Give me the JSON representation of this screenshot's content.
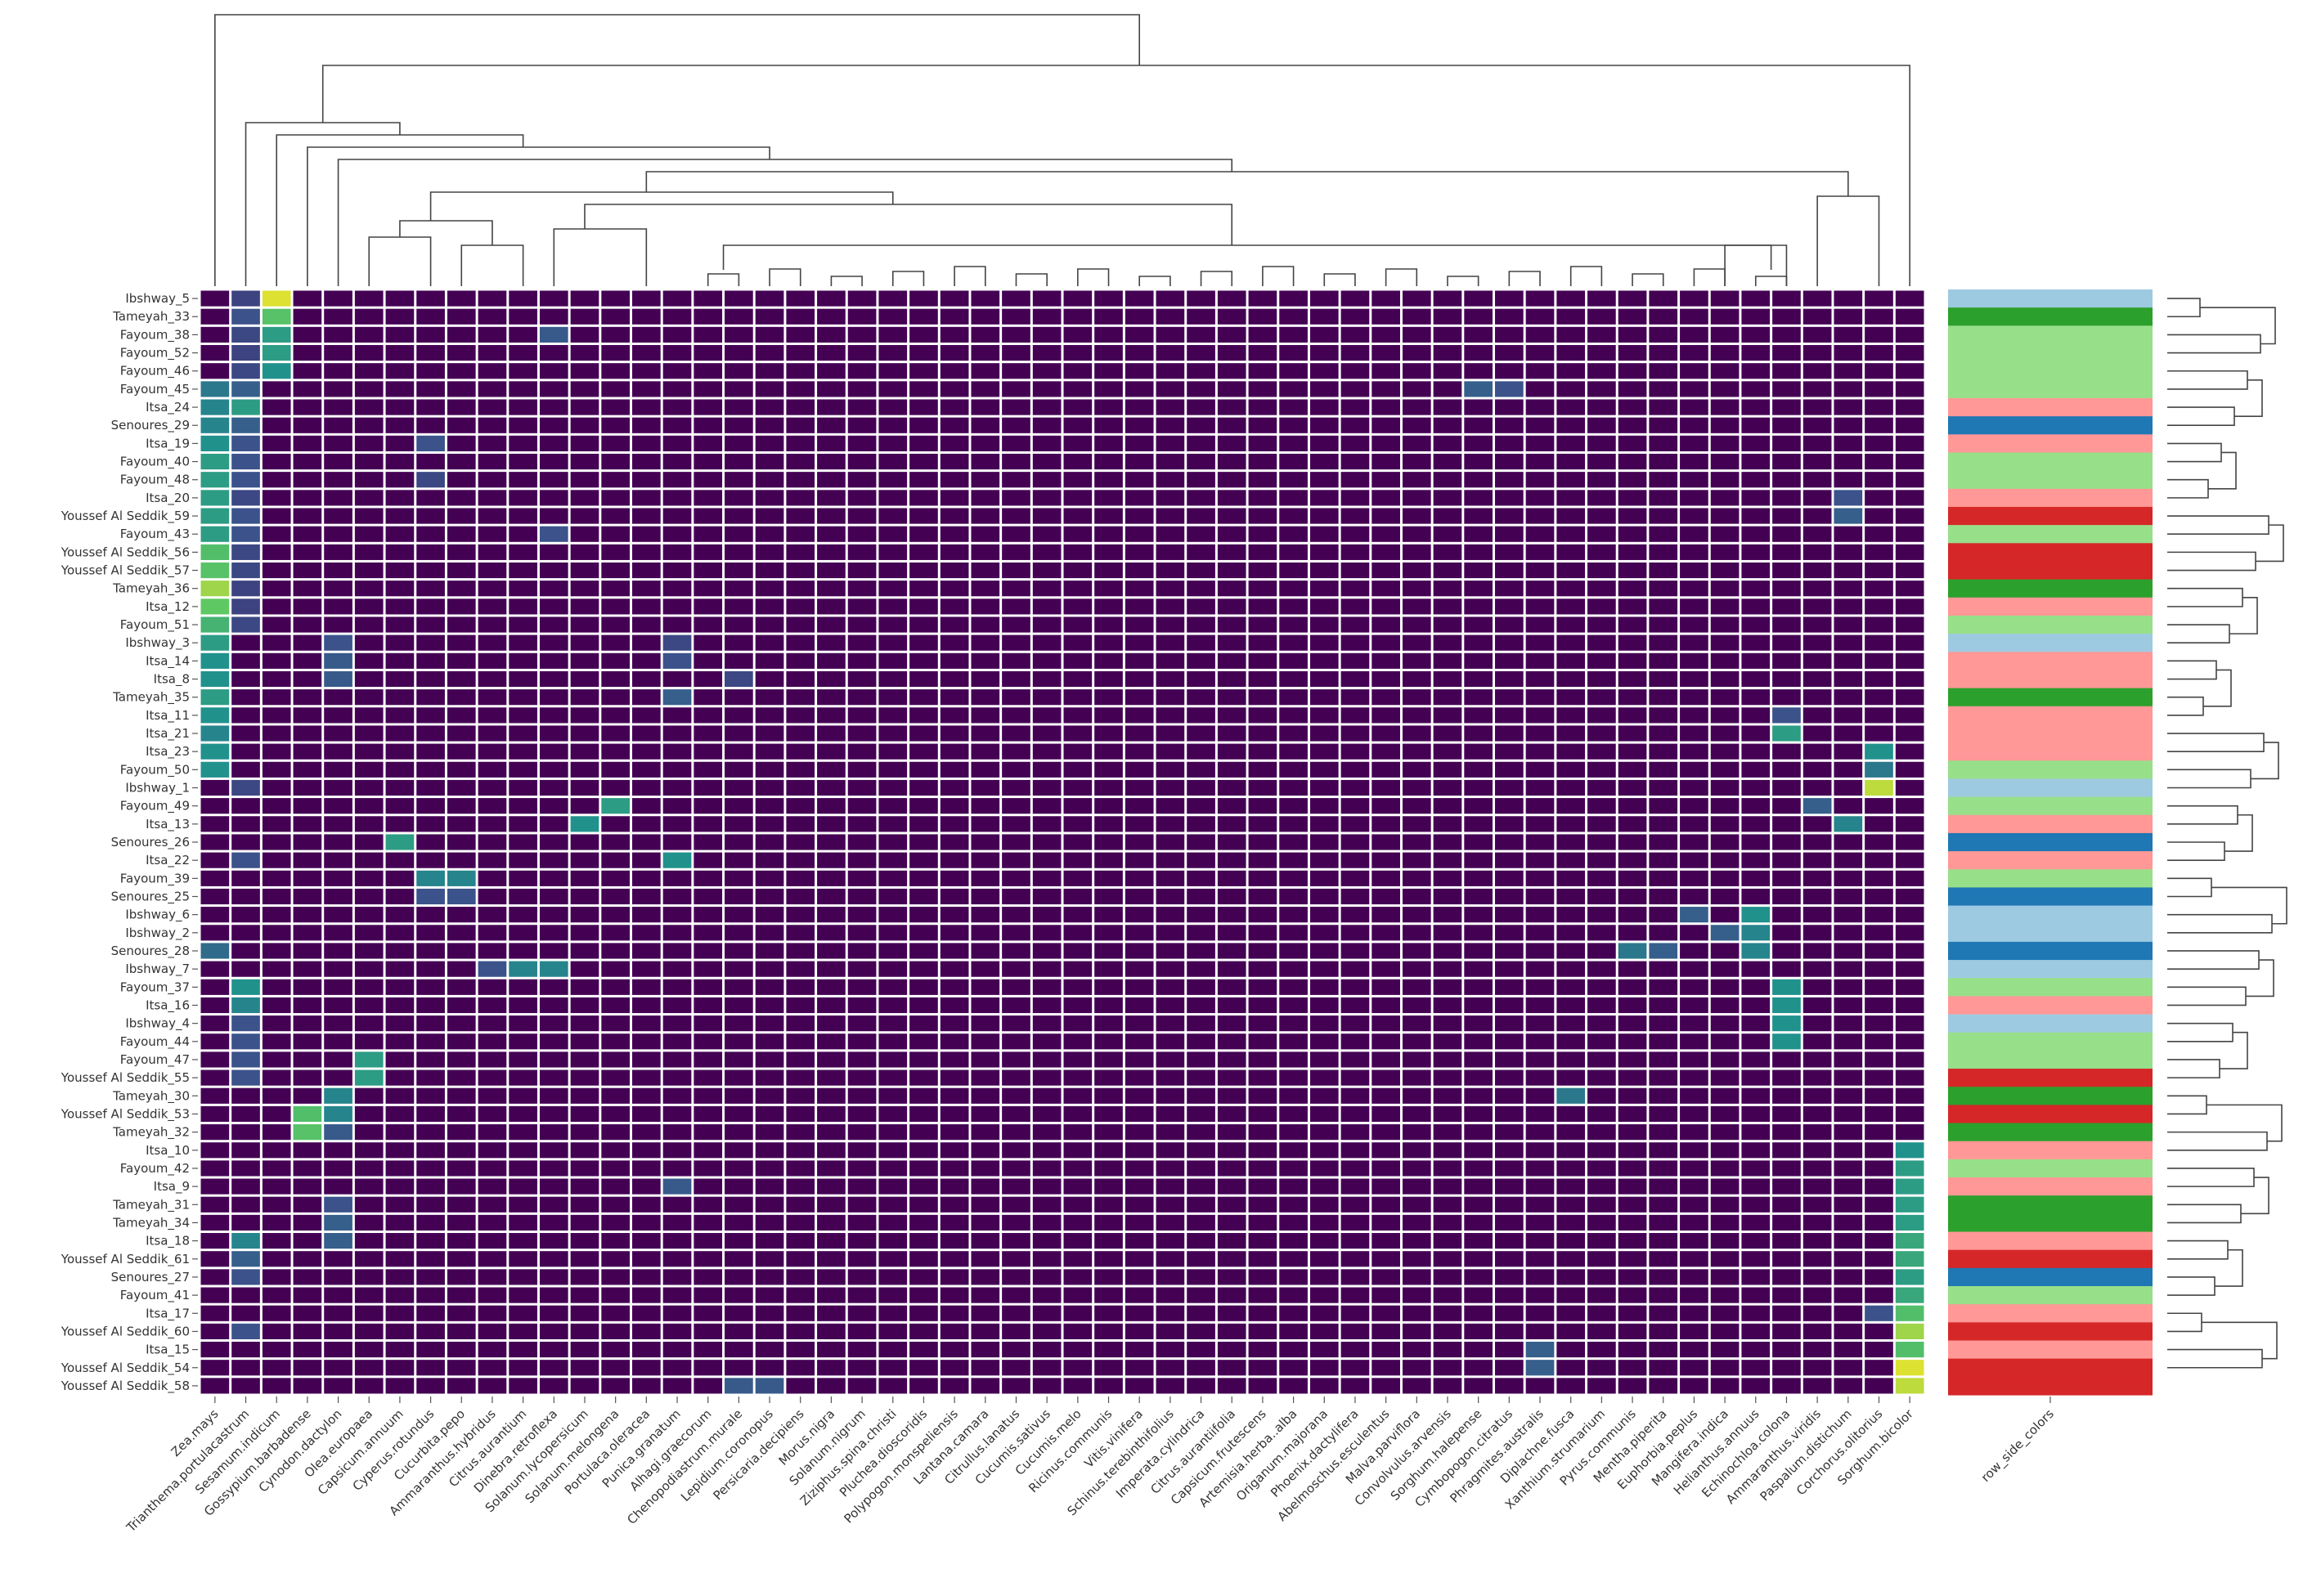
{
  "chart_data": {
    "type": "heatmap",
    "title": "",
    "xlabel": "",
    "ylabel": "",
    "colormap": "viridis",
    "value_range": [
      0,
      1
    ],
    "columns": [
      "Zea.mays",
      "Trianthema.portulacastrum",
      "Sesamum.indicum",
      "Gossypium.barbadense",
      "Cynodon.dactylon",
      "Olea.europaea",
      "Capsicum.annuum",
      "Cyperus.rotundus",
      "Cucurbita.pepo",
      "Ammaranthus.hybridus",
      "Citrus.aurantium",
      "Dinebra.retroflexa",
      "Solanum.lycopersicum",
      "Solanum.melongena",
      "Portulaca.oleracea",
      "Punica.granatum",
      "Alhagi.graecorum",
      "Chenopodiastrum.murale",
      "Lepidium.coronopus",
      "Persicaria.decipiens",
      "Morus.nigra",
      "Solanum.nigrum",
      "Ziziphus.spina.christi",
      "Pluchea.dioscoridis",
      "Polypogon.monspeliensis",
      "Lantana.camara",
      "Citrullus.lanatus",
      "Cucumis.sativus",
      "Cucumis.melo",
      "Ricinus.communis",
      "Vitis.vinifera",
      "Schinus.terebinthifolius",
      "Imperata.cylindrica",
      "Citrus.aurantiifolia",
      "Capsicum.frutescens",
      "Artemisia.herba..alba",
      "Origanum.majorana",
      "Phoenix.dactylifera",
      "Abelmoschus.esculentus",
      "Malva.parviflora",
      "Convolvulus.arvensis",
      "Sorghum.halepense",
      "Cymbopogon.citratus",
      "Phragmites.australis",
      "Diplachne.fusca",
      "Xanthium.strumarium",
      "Pyrus.communis",
      "Mentha.piperita",
      "Euphorbia.peplus",
      "Mangifera.indica",
      "Helianthus.annuus",
      "Echinochloa.colona",
      "Ammaranthus.viridis",
      "Paspalum.distichum",
      "Corchorus.olitorius",
      "Sorghum.bicolor"
    ],
    "rows": [
      "Ibshway_5",
      "Tameyah_33",
      "Fayoum_38",
      "Fayoum_52",
      "Fayoum_46",
      "Fayoum_45",
      "Itsa_24",
      "Senoures_29",
      "Itsa_19",
      "Fayoum_40",
      "Fayoum_48",
      "Itsa_20",
      "Youssef Al Seddik_59",
      "Fayoum_43",
      "Youssef Al Seddik_56",
      "Youssef Al Seddik_57",
      "Tameyah_36",
      "Itsa_12",
      "Fayoum_51",
      "Ibshway_3",
      "Itsa_14",
      "Itsa_8",
      "Tameyah_35",
      "Itsa_11",
      "Itsa_21",
      "Itsa_23",
      "Fayoum_50",
      "Ibshway_1",
      "Fayoum_49",
      "Itsa_13",
      "Senoures_26",
      "Itsa_22",
      "Fayoum_39",
      "Senoures_25",
      "Ibshway_6",
      "Ibshway_2",
      "Senoures_28",
      "Ibshway_7",
      "Fayoum_37",
      "Itsa_16",
      "Ibshway_4",
      "Fayoum_44",
      "Fayoum_47",
      "Youssef Al Seddik_55",
      "Tameyah_30",
      "Youssef Al Seddik_53",
      "Tameyah_32",
      "Itsa_10",
      "Fayoum_42",
      "Itsa_9",
      "Tameyah_31",
      "Tameyah_34",
      "Itsa_18",
      "Youssef Al Seddik_61",
      "Senoures_27",
      "Fayoum_41",
      "Itsa_17",
      "Youssef Al Seddik_60",
      "Itsa_15",
      "Youssef Al Seddik_54",
      "Youssef Al Seddik_58"
    ],
    "side_colors_label": "row_side_colors",
    "row_side_colors": [
      "#9ecae1",
      "#2ca02c",
      "#98df8a",
      "#98df8a",
      "#98df8a",
      "#98df8a",
      "#ff9896",
      "#1f77b4",
      "#ff9896",
      "#98df8a",
      "#98df8a",
      "#ff9896",
      "#d62728",
      "#98df8a",
      "#d62728",
      "#d62728",
      "#2ca02c",
      "#ff9896",
      "#98df8a",
      "#9ecae1",
      "#ff9896",
      "#ff9896",
      "#2ca02c",
      "#ff9896",
      "#ff9896",
      "#ff9896",
      "#98df8a",
      "#9ecae1",
      "#98df8a",
      "#ff9896",
      "#1f77b4",
      "#ff9896",
      "#98df8a",
      "#1f77b4",
      "#9ecae1",
      "#9ecae1",
      "#1f77b4",
      "#9ecae1",
      "#98df8a",
      "#ff9896",
      "#9ecae1",
      "#98df8a",
      "#98df8a",
      "#d62728",
      "#2ca02c",
      "#d62728",
      "#2ca02c",
      "#ff9896",
      "#98df8a",
      "#ff9896",
      "#2ca02c",
      "#2ca02c",
      "#ff9896",
      "#d62728",
      "#1f77b4",
      "#98df8a",
      "#ff9896",
      "#d62728",
      "#ff9896",
      "#d62728",
      "#d62728"
    ],
    "cells": [
      {
        "row": "Ibshway_5",
        "col": "Sesamum.indicum",
        "v": 0.95
      },
      {
        "row": "Ibshway_5",
        "col": "Trianthema.portulacastrum",
        "v": 0.2
      },
      {
        "row": "Tameyah_33",
        "col": "Sesamum.indicum",
        "v": 0.72
      },
      {
        "row": "Tameyah_33",
        "col": "Trianthema.portulacastrum",
        "v": 0.25
      },
      {
        "row": "Fayoum_38",
        "col": "Sesamum.indicum",
        "v": 0.55
      },
      {
        "row": "Fayoum_38",
        "col": "Trianthema.portulacastrum",
        "v": 0.22
      },
      {
        "row": "Fayoum_38",
        "col": "Dinebra.retroflexa",
        "v": 0.28
      },
      {
        "row": "Fayoum_52",
        "col": "Sesamum.indicum",
        "v": 0.55
      },
      {
        "row": "Fayoum_52",
        "col": "Trianthema.portulacastrum",
        "v": 0.2
      },
      {
        "row": "Fayoum_46",
        "col": "Sesamum.indicum",
        "v": 0.5
      },
      {
        "row": "Fayoum_46",
        "col": "Trianthema.portulacastrum",
        "v": 0.22
      },
      {
        "row": "Fayoum_45",
        "col": "Zea.mays",
        "v": 0.4
      },
      {
        "row": "Fayoum_45",
        "col": "Trianthema.portulacastrum",
        "v": 0.3
      },
      {
        "row": "Fayoum_45",
        "col": "Sorghum.halepense",
        "v": 0.3
      },
      {
        "row": "Fayoum_45",
        "col": "Cymbopogon.citratus",
        "v": 0.25
      },
      {
        "row": "Itsa_24",
        "col": "Zea.mays",
        "v": 0.45
      },
      {
        "row": "Itsa_24",
        "col": "Trianthema.portulacastrum",
        "v": 0.55
      },
      {
        "row": "Senoures_29",
        "col": "Zea.mays",
        "v": 0.45
      },
      {
        "row": "Senoures_29",
        "col": "Trianthema.portulacastrum",
        "v": 0.3
      },
      {
        "row": "Itsa_19",
        "col": "Zea.mays",
        "v": 0.5
      },
      {
        "row": "Itsa_19",
        "col": "Trianthema.portulacastrum",
        "v": 0.25
      },
      {
        "row": "Itsa_19",
        "col": "Cyperus.rotundus",
        "v": 0.25
      },
      {
        "row": "Fayoum_40",
        "col": "Zea.mays",
        "v": 0.55
      },
      {
        "row": "Fayoum_40",
        "col": "Trianthema.portulacastrum",
        "v": 0.25
      },
      {
        "row": "Fayoum_48",
        "col": "Zea.mays",
        "v": 0.55
      },
      {
        "row": "Fayoum_48",
        "col": "Trianthema.portulacastrum",
        "v": 0.25
      },
      {
        "row": "Fayoum_48",
        "col": "Cyperus.rotundus",
        "v": 0.22
      },
      {
        "row": "Itsa_20",
        "col": "Zea.mays",
        "v": 0.55
      },
      {
        "row": "Itsa_20",
        "col": "Trianthema.portulacastrum",
        "v": 0.22
      },
      {
        "row": "Itsa_20",
        "col": "Paspalum.distichum",
        "v": 0.25
      },
      {
        "row": "Youssef Al Seddik_59",
        "col": "Zea.mays",
        "v": 0.55
      },
      {
        "row": "Youssef Al Seddik_59",
        "col": "Trianthema.portulacastrum",
        "v": 0.25
      },
      {
        "row": "Youssef Al Seddik_59",
        "col": "Paspalum.distichum",
        "v": 0.3
      },
      {
        "row": "Fayoum_43",
        "col": "Zea.mays",
        "v": 0.55
      },
      {
        "row": "Fayoum_43",
        "col": "Trianthema.portulacastrum",
        "v": 0.25
      },
      {
        "row": "Fayoum_43",
        "col": "Dinebra.retroflexa",
        "v": 0.25
      },
      {
        "row": "Youssef Al Seddik_56",
        "col": "Zea.mays",
        "v": 0.7
      },
      {
        "row": "Youssef Al Seddik_56",
        "col": "Trianthema.portulacastrum",
        "v": 0.22
      },
      {
        "row": "Youssef Al Seddik_57",
        "col": "Zea.mays",
        "v": 0.72
      },
      {
        "row": "Youssef Al Seddik_57",
        "col": "Trianthema.portulacastrum",
        "v": 0.22
      },
      {
        "row": "Tameyah_36",
        "col": "Zea.mays",
        "v": 0.85
      },
      {
        "row": "Tameyah_36",
        "col": "Trianthema.portulacastrum",
        "v": 0.2
      },
      {
        "row": "Itsa_12",
        "col": "Zea.mays",
        "v": 0.75
      },
      {
        "row": "Itsa_12",
        "col": "Trianthema.portulacastrum",
        "v": 0.2
      },
      {
        "row": "Fayoum_51",
        "col": "Zea.mays",
        "v": 0.65
      },
      {
        "row": "Fayoum_51",
        "col": "Trianthema.portulacastrum",
        "v": 0.22
      },
      {
        "row": "Ibshway_3",
        "col": "Zea.mays",
        "v": 0.55
      },
      {
        "row": "Ibshway_3",
        "col": "Cynodon.dactylon",
        "v": 0.25
      },
      {
        "row": "Ibshway_3",
        "col": "Punica.granatum",
        "v": 0.22
      },
      {
        "row": "Itsa_14",
        "col": "Zea.mays",
        "v": 0.5
      },
      {
        "row": "Itsa_14",
        "col": "Cynodon.dactylon",
        "v": 0.28
      },
      {
        "row": "Itsa_14",
        "col": "Punica.granatum",
        "v": 0.25
      },
      {
        "row": "Itsa_8",
        "col": "Zea.mays",
        "v": 0.5
      },
      {
        "row": "Itsa_8",
        "col": "Cynodon.dactylon",
        "v": 0.28
      },
      {
        "row": "Itsa_8",
        "col": "Chenopodiastrum.murale",
        "v": 0.22
      },
      {
        "row": "Tameyah_35",
        "col": "Zea.mays",
        "v": 0.55
      },
      {
        "row": "Tameyah_35",
        "col": "Punica.granatum",
        "v": 0.3
      },
      {
        "row": "Itsa_11",
        "col": "Zea.mays",
        "v": 0.5
      },
      {
        "row": "Itsa_11",
        "col": "Echinochloa.colona",
        "v": 0.25
      },
      {
        "row": "Itsa_21",
        "col": "Zea.mays",
        "v": 0.45
      },
      {
        "row": "Itsa_21",
        "col": "Echinochloa.colona",
        "v": 0.55
      },
      {
        "row": "Itsa_23",
        "col": "Zea.mays",
        "v": 0.5
      },
      {
        "row": "Itsa_23",
        "col": "Corchorus.olitorius",
        "v": 0.5
      },
      {
        "row": "Fayoum_50",
        "col": "Zea.mays",
        "v": 0.5
      },
      {
        "row": "Fayoum_50",
        "col": "Corchorus.olitorius",
        "v": 0.4
      },
      {
        "row": "Ibshway_1",
        "col": "Trianthema.portulacastrum",
        "v": 0.22
      },
      {
        "row": "Ibshway_1",
        "col": "Corchorus.olitorius",
        "v": 0.9
      },
      {
        "row": "Fayoum_49",
        "col": "Solanum.melongena",
        "v": 0.55
      },
      {
        "row": "Fayoum_49",
        "col": "Ammaranthus.viridis",
        "v": 0.3
      },
      {
        "row": "Itsa_13",
        "col": "Solanum.lycopersicum",
        "v": 0.5
      },
      {
        "row": "Itsa_13",
        "col": "Paspalum.distichum",
        "v": 0.45
      },
      {
        "row": "Senoures_26",
        "col": "Capsicum.annuum",
        "v": 0.55
      },
      {
        "row": "Itsa_22",
        "col": "Trianthema.portulacastrum",
        "v": 0.25
      },
      {
        "row": "Itsa_22",
        "col": "Punica.granatum",
        "v": 0.5
      },
      {
        "row": "Fayoum_39",
        "col": "Cyperus.rotundus",
        "v": 0.45
      },
      {
        "row": "Fayoum_39",
        "col": "Cucurbita.pepo",
        "v": 0.45
      },
      {
        "row": "Senoures_25",
        "col": "Cyperus.rotundus",
        "v": 0.25
      },
      {
        "row": "Senoures_25",
        "col": "Cucurbita.pepo",
        "v": 0.25
      },
      {
        "row": "Ibshway_6",
        "col": "Euphorbia.peplus",
        "v": 0.3
      },
      {
        "row": "Ibshway_6",
        "col": "Helianthus.annuus",
        "v": 0.5
      },
      {
        "row": "Ibshway_2",
        "col": "Mangifera.indica",
        "v": 0.3
      },
      {
        "row": "Ibshway_2",
        "col": "Helianthus.annuus",
        "v": 0.45
      },
      {
        "row": "Senoures_28",
        "col": "Zea.mays",
        "v": 0.35
      },
      {
        "row": "Senoures_28",
        "col": "Pyrus.communis",
        "v": 0.4
      },
      {
        "row": "Senoures_28",
        "col": "Mentha.piperita",
        "v": 0.3
      },
      {
        "row": "Senoures_28",
        "col": "Helianthus.annuus",
        "v": 0.45
      },
      {
        "row": "Ibshway_7",
        "col": "Citrus.aurantium",
        "v": 0.45
      },
      {
        "row": "Ibshway_7",
        "col": "Dinebra.retroflexa",
        "v": 0.45
      },
      {
        "row": "Ibshway_7",
        "col": "Ammaranthus.hybridus",
        "v": 0.25
      },
      {
        "row": "Fayoum_37",
        "col": "Trianthema.portulacastrum",
        "v": 0.5
      },
      {
        "row": "Fayoum_37",
        "col": "Echinochloa.colona",
        "v": 0.5
      },
      {
        "row": "Itsa_16",
        "col": "Trianthema.portulacastrum",
        "v": 0.45
      },
      {
        "row": "Itsa_16",
        "col": "Echinochloa.colona",
        "v": 0.5
      },
      {
        "row": "Ibshway_4",
        "col": "Trianthema.portulacastrum",
        "v": 0.25
      },
      {
        "row": "Ibshway_4",
        "col": "Echinochloa.colona",
        "v": 0.5
      },
      {
        "row": "Fayoum_44",
        "col": "Trianthema.portulacastrum",
        "v": 0.25
      },
      {
        "row": "Fayoum_44",
        "col": "Echinochloa.colona",
        "v": 0.5
      },
      {
        "row": "Fayoum_47",
        "col": "Olea.europaea",
        "v": 0.55
      },
      {
        "row": "Fayoum_47",
        "col": "Trianthema.portulacastrum",
        "v": 0.25
      },
      {
        "row": "Youssef Al Seddik_55",
        "col": "Olea.europaea",
        "v": 0.55
      },
      {
        "row": "Youssef Al Seddik_55",
        "col": "Trianthema.portulacastrum",
        "v": 0.25
      },
      {
        "row": "Tameyah_30",
        "col": "Cynodon.dactylon",
        "v": 0.45
      },
      {
        "row": "Tameyah_30",
        "col": "Diplachne.fusca",
        "v": 0.4
      },
      {
        "row": "Youssef Al Seddik_53",
        "col": "Gossypium.barbadense",
        "v": 0.7
      },
      {
        "row": "Youssef Al Seddik_53",
        "col": "Cynodon.dactylon",
        "v": 0.45
      },
      {
        "row": "Tameyah_32",
        "col": "Gossypium.barbadense",
        "v": 0.72
      },
      {
        "row": "Tameyah_32",
        "col": "Cynodon.dactylon",
        "v": 0.28
      },
      {
        "row": "Itsa_10",
        "col": "Sorghum.bicolor",
        "v": 0.5
      },
      {
        "row": "Fayoum_42",
        "col": "Sorghum.bicolor",
        "v": 0.55
      },
      {
        "row": "Itsa_9",
        "col": "Sorghum.bicolor",
        "v": 0.55
      },
      {
        "row": "Itsa_9",
        "col": "Punica.granatum",
        "v": 0.28
      },
      {
        "row": "Tameyah_31",
        "col": "Sorghum.bicolor",
        "v": 0.55
      },
      {
        "row": "Tameyah_31",
        "col": "Cynodon.dactylon",
        "v": 0.25
      },
      {
        "row": "Tameyah_34",
        "col": "Sorghum.bicolor",
        "v": 0.55
      },
      {
        "row": "Tameyah_34",
        "col": "Cynodon.dactylon",
        "v": 0.3
      },
      {
        "row": "Itsa_18",
        "col": "Sorghum.bicolor",
        "v": 0.6
      },
      {
        "row": "Itsa_18",
        "col": "Trianthema.portulacastrum",
        "v": 0.45
      },
      {
        "row": "Itsa_18",
        "col": "Cynodon.dactylon",
        "v": 0.3
      },
      {
        "row": "Youssef Al Seddik_61",
        "col": "Sorghum.bicolor",
        "v": 0.6
      },
      {
        "row": "Youssef Al Seddik_61",
        "col": "Trianthema.portulacastrum",
        "v": 0.3
      },
      {
        "row": "Senoures_27",
        "col": "Sorghum.bicolor",
        "v": 0.55
      },
      {
        "row": "Senoures_27",
        "col": "Trianthema.portulacastrum",
        "v": 0.25
      },
      {
        "row": "Fayoum_41",
        "col": "Sorghum.bicolor",
        "v": 0.6
      },
      {
        "row": "Itsa_17",
        "col": "Sorghum.bicolor",
        "v": 0.7
      },
      {
        "row": "Itsa_17",
        "col": "Corchorus.olitorius",
        "v": 0.25
      },
      {
        "row": "Youssef Al Seddik_60",
        "col": "Sorghum.bicolor",
        "v": 0.85
      },
      {
        "row": "Youssef Al Seddik_60",
        "col": "Trianthema.portulacastrum",
        "v": 0.25
      },
      {
        "row": "Itsa_15",
        "col": "Sorghum.bicolor",
        "v": 0.7
      },
      {
        "row": "Itsa_15",
        "col": "Phragmites.australis",
        "v": 0.3
      },
      {
        "row": "Youssef Al Seddik_54",
        "col": "Sorghum.bicolor",
        "v": 0.95
      },
      {
        "row": "Youssef Al Seddik_54",
        "col": "Phragmites.australis",
        "v": 0.3
      },
      {
        "row": "Youssef Al Seddik_58",
        "col": "Sorghum.bicolor",
        "v": 0.9
      },
      {
        "row": "Youssef Al Seddik_58",
        "col": "Chenopodiastrum.murale",
        "v": 0.28
      },
      {
        "row": "Youssef Al Seddik_58",
        "col": "Lepidium.coronopus",
        "v": 0.28
      }
    ],
    "background_value": 0.0,
    "dendrograms": [
      "columns-top",
      "rows-right"
    ]
  }
}
